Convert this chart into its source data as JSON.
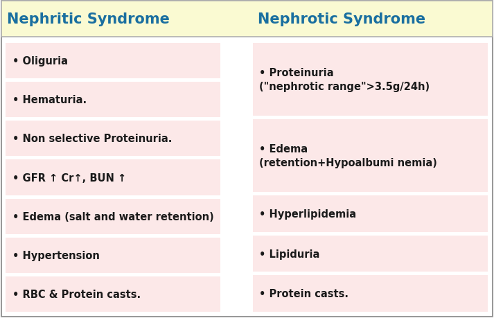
{
  "title_left": "Nephritic Syndrome",
  "title_right": "Nephrotic Syndrome",
  "title_bg": "#fafad2",
  "title_color": "#1a6fa0",
  "title_fontsize": 15,
  "header_border_color": "#b0b0b0",
  "row_bg": "#fce8e8",
  "text_color": "#1a1a1a",
  "item_fontsize": 10.5,
  "left_items": [
    "• Oliguria",
    "• Hematuria.",
    "• Non selective Proteinuria.",
    "• GFR ↑ Cr↑, BUN ↑",
    "• Edema (salt and water retention)",
    "• Hypertension",
    "• RBC & Protein casts."
  ],
  "right_items": [
    "• Proteinuria\n(\"nephrotic range\">3.5g/24h)",
    "• Edema\n(retention+Hypoalbumi nemia)",
    "• Hyperlipidemia",
    "• Lipiduria",
    "• Protein casts."
  ],
  "fig_bg": "#ffffff",
  "outer_border_color": "#999999"
}
